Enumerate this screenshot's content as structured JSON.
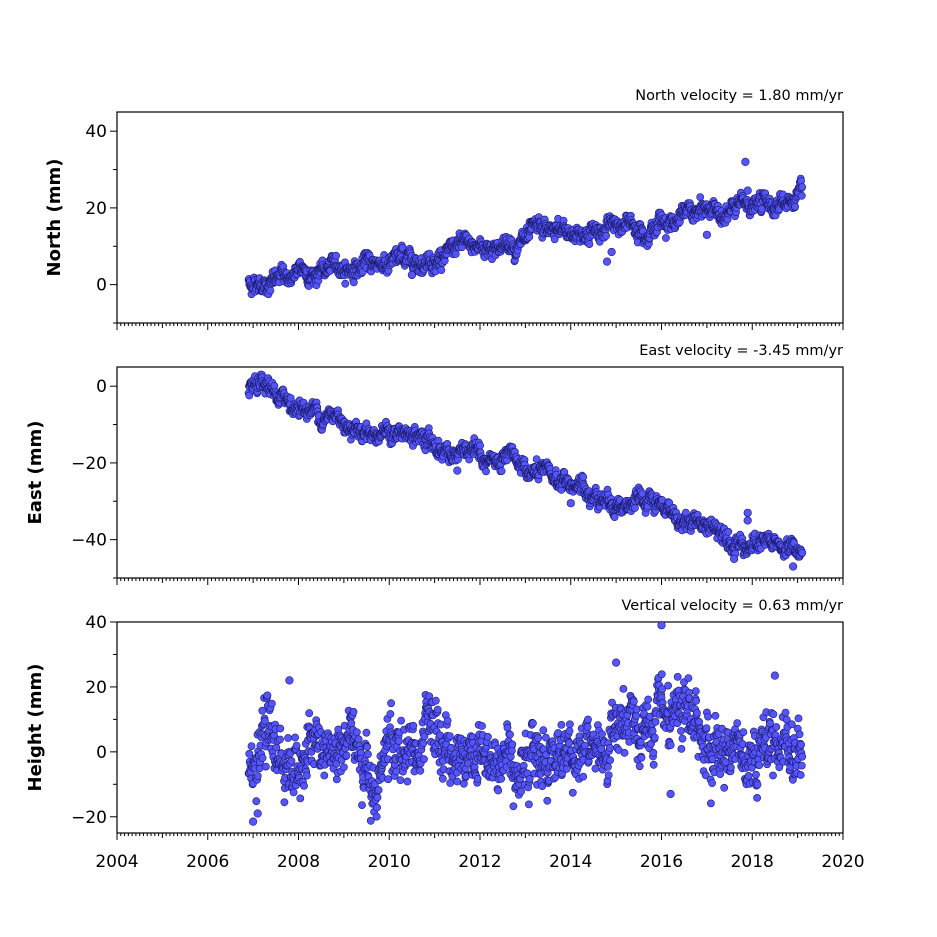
{
  "chart_data": [
    {
      "type": "scatter",
      "title": "North velocity = 1.80 mm/yr",
      "ylabel": "North (mm)",
      "xlim": [
        2004,
        2020
      ],
      "ylim": [
        -10,
        45
      ],
      "yticks": [
        0,
        20,
        40
      ],
      "xticks": [],
      "velocity_mm_per_yr": 1.8,
      "series": [
        {
          "x_range": [
            2006.9,
            2019.1
          ],
          "y_start": 0.5,
          "noise_mm": 1.5,
          "outliers": [
            [
              2017.85,
              32
            ],
            [
              2014.9,
              8.5
            ],
            [
              2014.8,
              6
            ],
            [
              2010.5,
              2.5
            ],
            [
              2017.0,
              13
            ],
            [
              2017.9,
              24.5
            ]
          ],
          "color": "#5555ff"
        }
      ]
    },
    {
      "type": "scatter",
      "title": "East velocity = -3.45 mm/yr",
      "ylabel": "East (mm)",
      "xlim": [
        2004,
        2020
      ],
      "ylim": [
        -50,
        5
      ],
      "yticks": [
        0,
        -20,
        -40
      ],
      "xticks": [],
      "velocity_mm_per_yr": -3.45,
      "series": [
        {
          "x_range": [
            2006.9,
            2019.1
          ],
          "y_start": -1.5,
          "noise_mm": 1.5,
          "outliers": [
            [
              2017.9,
              -33
            ],
            [
              2017.9,
              -35
            ],
            [
              2018.9,
              -47
            ],
            [
              2017.6,
              -45
            ],
            [
              2011.5,
              -22
            ],
            [
              2014.0,
              -30.5
            ]
          ],
          "color": "#5555ff"
        }
      ]
    },
    {
      "type": "scatter",
      "title": "Vertical velocity = 0.63 mm/yr",
      "ylabel": "Height (mm)",
      "xlim": [
        2004,
        2020
      ],
      "ylim": [
        -25,
        40
      ],
      "yticks": [
        -20,
        0,
        20,
        40
      ],
      "xticks": [
        "2004",
        "2006",
        "2008",
        "2010",
        "2012",
        "2014",
        "2016",
        "2018",
        "2020"
      ],
      "velocity_mm_per_yr": 0.63,
      "series": [
        {
          "x_range": [
            2006.9,
            2019.1
          ],
          "y_start": -3,
          "noise_mm": 6,
          "outliers": [
            [
              2016.0,
              39
            ],
            [
              2007.8,
              22
            ],
            [
              2015.0,
              27.5
            ],
            [
              2007.0,
              -21.5
            ],
            [
              2016.2,
              -13
            ],
            [
              2018.5,
              23.5
            ],
            [
              2007.1,
              -19
            ]
          ],
          "color": "#5555ff"
        }
      ]
    }
  ]
}
